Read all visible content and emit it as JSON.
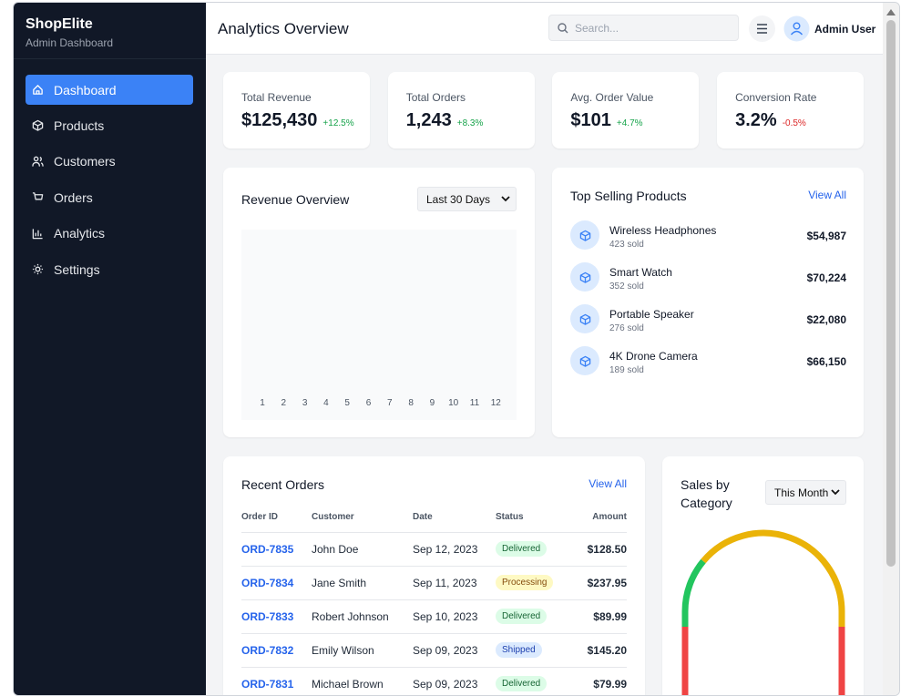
{
  "sidebar": {
    "brand": "ShopElite",
    "subtitle": "Admin Dashboard",
    "nav": [
      "Dashboard",
      "Products",
      "Customers",
      "Orders",
      "Analytics",
      "Settings"
    ]
  },
  "header": {
    "title": "Analytics Overview",
    "search_placeholder": "Search...",
    "user": "Admin User"
  },
  "stats": [
    {
      "label": "Total Revenue",
      "value": "$125,430",
      "change": "+12.5%"
    },
    {
      "label": "Total Orders",
      "value": "1,243",
      "change": "+8.3%"
    },
    {
      "label": "Avg. Order Value",
      "value": "$101",
      "change": "+4.7%"
    },
    {
      "label": "Conversion Rate",
      "value": "3.2%",
      "change": "-0.5%"
    }
  ],
  "revenue": {
    "title": "Revenue Overview",
    "range": "Last 30 Days",
    "x_labels": [
      "1",
      "2",
      "3",
      "4",
      "5",
      "6",
      "7",
      "8",
      "9",
      "10",
      "11",
      "12"
    ]
  },
  "top_products": {
    "title": "Top Selling Products",
    "link": "View All",
    "items": [
      {
        "name": "Wireless Headphones",
        "sold": "423 sold",
        "amount": "$54,987"
      },
      {
        "name": "Smart Watch",
        "sold": "352 sold",
        "amount": "$70,224"
      },
      {
        "name": "Portable Speaker",
        "sold": "276 sold",
        "amount": "$22,080"
      },
      {
        "name": "4K Drone Camera",
        "sold": "189 sold",
        "amount": "$66,150"
      }
    ]
  },
  "orders": {
    "title": "Recent Orders",
    "link": "View All",
    "columns": [
      "Order ID",
      "Customer",
      "Date",
      "Status",
      "Amount"
    ],
    "rows": [
      {
        "id": "ORD-7835",
        "customer": "John Doe",
        "date": "Sep 12, 2023",
        "status": "Delivered",
        "status_tone": "green",
        "amount": "$128.50"
      },
      {
        "id": "ORD-7834",
        "customer": "Jane Smith",
        "date": "Sep 11, 2023",
        "status": "Processing",
        "status_tone": "yellow",
        "amount": "$237.95"
      },
      {
        "id": "ORD-7833",
        "customer": "Robert Johnson",
        "date": "Sep 10, 2023",
        "status": "Delivered",
        "status_tone": "green",
        "amount": "$89.99"
      },
      {
        "id": "ORD-7832",
        "customer": "Emily Wilson",
        "date": "Sep 09, 2023",
        "status": "Shipped",
        "status_tone": "blue",
        "amount": "$145.20"
      },
      {
        "id": "ORD-7831",
        "customer": "Michael Brown",
        "date": "Sep 09, 2023",
        "status": "Delivered",
        "status_tone": "green",
        "amount": "$79.99"
      }
    ]
  },
  "category": {
    "title": "Sales by Category",
    "range": "This Month"
  }
}
